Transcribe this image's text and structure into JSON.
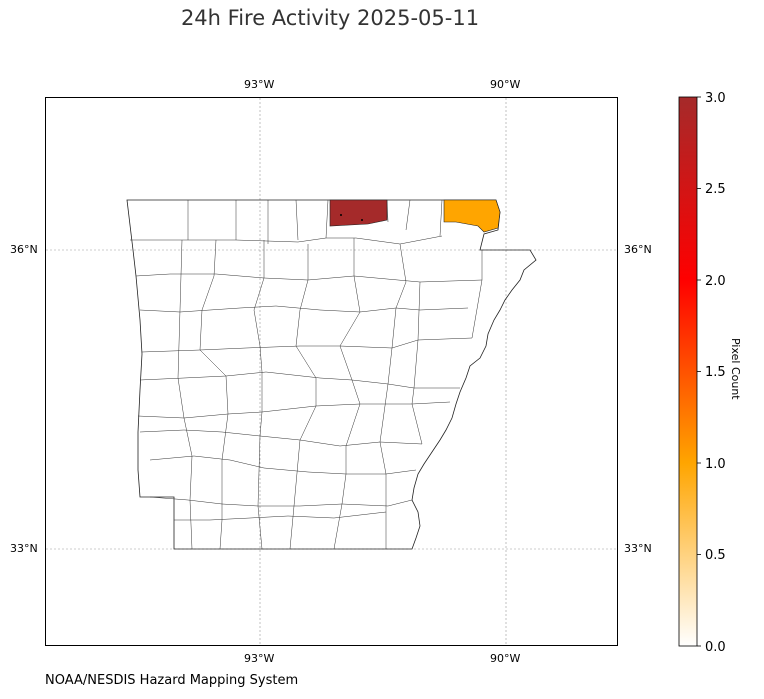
{
  "title": "24h Fire Activity 2025-05-11",
  "credit": "NOAA/NESDIS Hazard Mapping System",
  "map": {
    "lon_ticks": [
      "93°W",
      "90°W"
    ],
    "lat_ticks": [
      "36°N",
      "33°N"
    ],
    "gridlines": true,
    "fire_pixels": [
      {
        "region": "north-central county",
        "count": 3,
        "color": "#a52a2a"
      },
      {
        "region": "northeast county",
        "count": 1,
        "color": "#ffa500"
      }
    ]
  },
  "colorbar": {
    "label": "Pixel Count",
    "ticks": [
      "0.0",
      "0.5",
      "1.0",
      "1.5",
      "2.0",
      "2.5",
      "3.0"
    ],
    "min": 0,
    "max": 3,
    "colors": [
      "#ffffff",
      "#ffa500",
      "#ff0000",
      "#a52a2a"
    ]
  }
}
